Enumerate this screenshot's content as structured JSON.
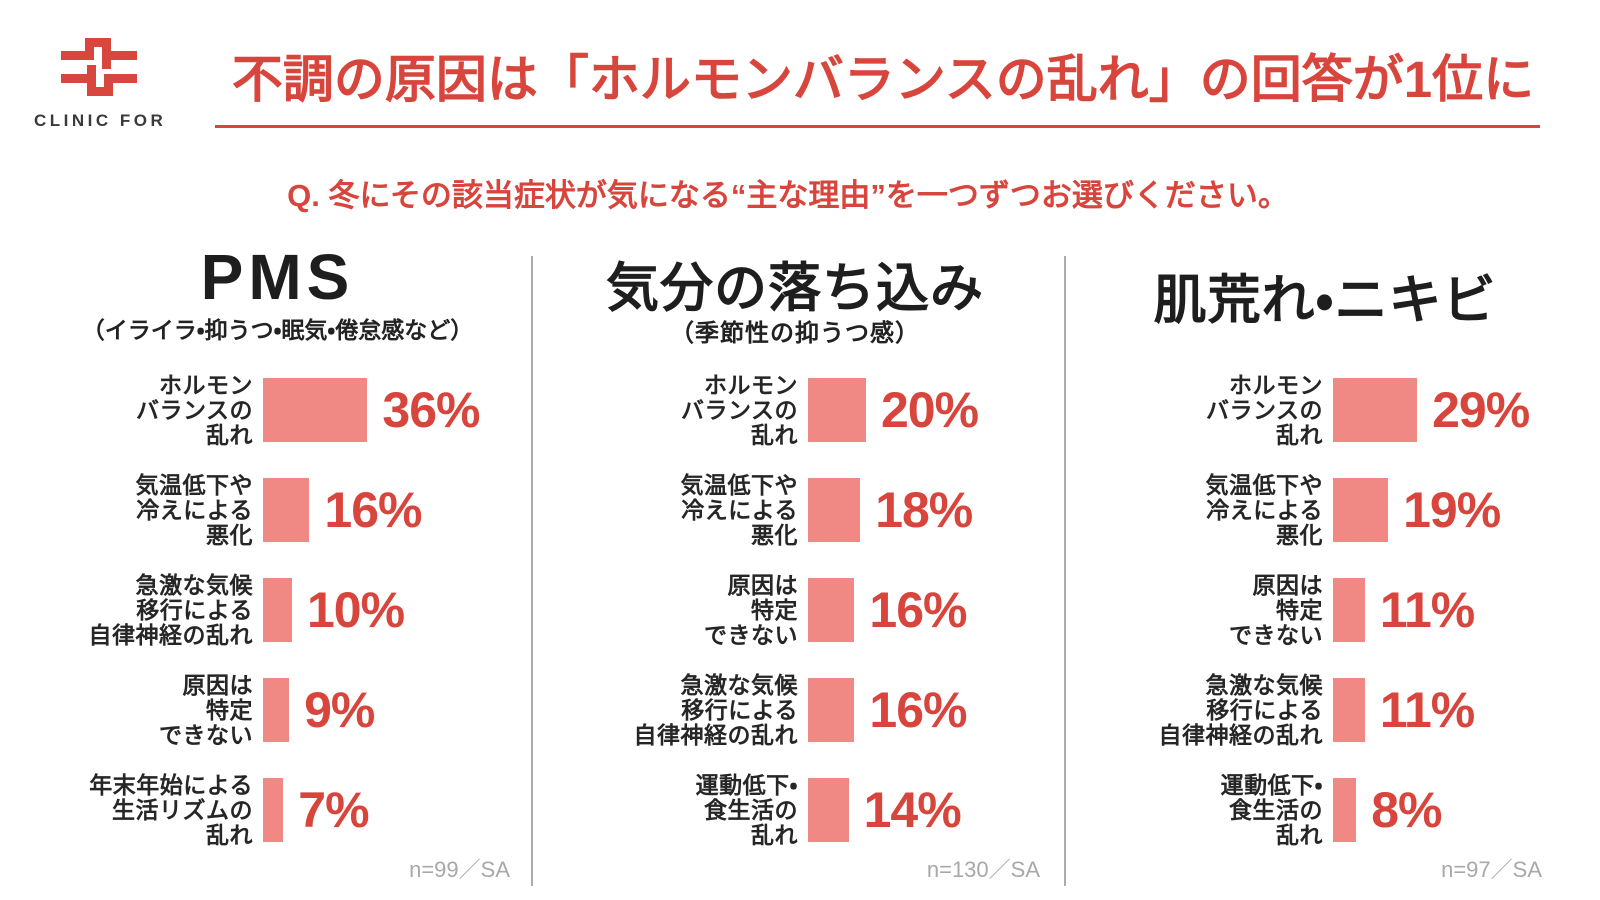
{
  "brand": {
    "logo_text": "CLINIC FOR"
  },
  "header": {
    "title": "不調の原因は「ホルモンバランスの乱れ」の回答が1位に"
  },
  "question": "Q. 冬にその該当症状が気になる“主な理由”を一つずつお選びください。",
  "colors": {
    "accent_red": "#D7453C",
    "bar_pink": "#F08983",
    "divider_gray": "#ACACAC",
    "footnote_gray": "#A8A8A8",
    "title_black": "#1E1E1E"
  },
  "chart_data": [
    {
      "type": "bar",
      "orientation": "horizontal",
      "title": "PMS",
      "subtitle": "（イライラ・抑うつ・眠気・倦怠感など）",
      "unit": "%",
      "xlim": [
        0,
        40
      ],
      "categories": [
        "ホルモン\nバランスの\n乱れ",
        "気温低下や\n冷えによる\n悪化",
        "急激な気候\n移行による\n自律神経の乱れ",
        "原因は\n特定\nできない",
        "年末年始による\n生活リズムの\n乱れ"
      ],
      "values": [
        36,
        16,
        10,
        9,
        7
      ],
      "value_labels": [
        "36%",
        "16%",
        "10%",
        "9%",
        "7%"
      ],
      "sample_note": "n=99／SA"
    },
    {
      "type": "bar",
      "orientation": "horizontal",
      "title": "気分の落ち込み",
      "subtitle": "（季節性の抑うつ感）",
      "unit": "%",
      "xlim": [
        0,
        40
      ],
      "categories": [
        "ホルモン\nバランスの\n乱れ",
        "気温低下や\n冷えによる\n悪化",
        "原因は\n特定\nできない",
        "急激な気候\n移行による\n自律神経の乱れ",
        "運動低下・\n食生活の\n乱れ"
      ],
      "values": [
        20,
        18,
        16,
        16,
        14
      ],
      "value_labels": [
        "20%",
        "18%",
        "16%",
        "16%",
        "14%"
      ],
      "sample_note": "n=130／SA"
    },
    {
      "type": "bar",
      "orientation": "horizontal",
      "title": "肌荒れ・ニキビ",
      "subtitle": "",
      "unit": "%",
      "xlim": [
        0,
        40
      ],
      "categories": [
        "ホルモン\nバランスの\n乱れ",
        "気温低下や\n冷えによる\n悪化",
        "原因は\n特定\nできない",
        "急激な気候\n移行による\n自律神経の乱れ",
        "運動低下・\n食生活の\n乱れ"
      ],
      "values": [
        29,
        19,
        11,
        11,
        8
      ],
      "value_labels": [
        "29%",
        "19%",
        "11%",
        "11%",
        "8%"
      ],
      "sample_note": "n=97／SA"
    }
  ]
}
